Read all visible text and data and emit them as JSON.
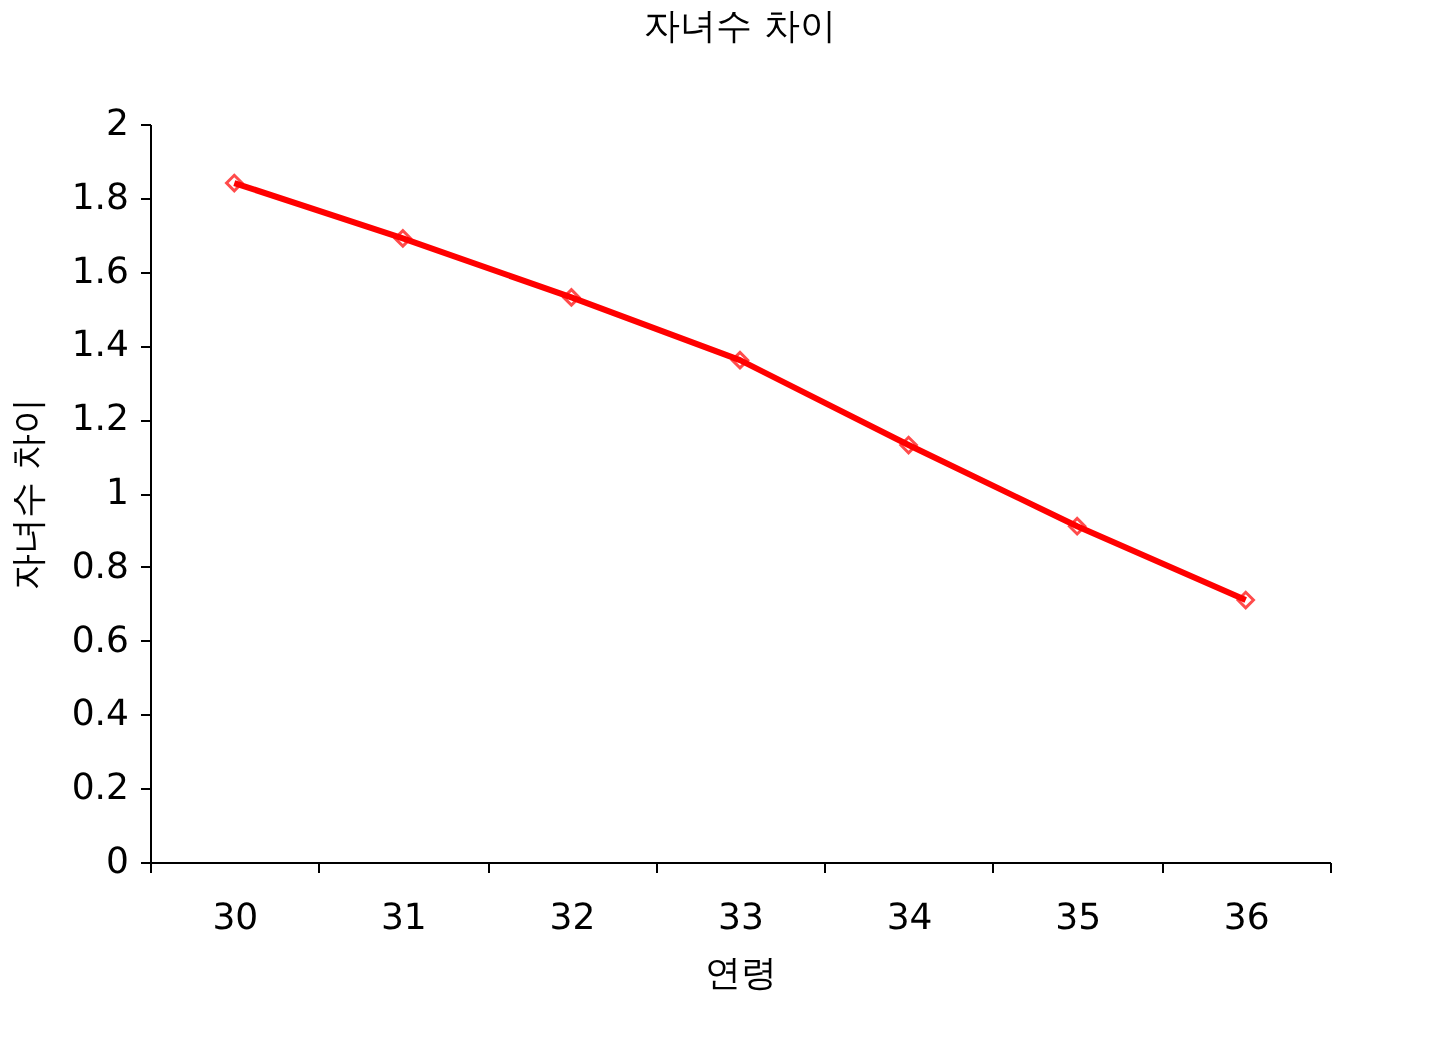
{
  "chart_data": {
    "type": "line",
    "title": "자녀수 차이",
    "xlabel": "연령",
    "ylabel": "자녀수 차이",
    "categories": [
      "30",
      "31",
      "32",
      "33",
      "34",
      "35",
      "36"
    ],
    "series": [
      {
        "color": "#ff0000",
        "values": [
          1.84,
          1.69,
          1.53,
          1.36,
          1.13,
          0.91,
          0.71
        ]
      }
    ],
    "ylim": [
      0,
      2
    ],
    "yticks": [
      0,
      0.2,
      0.4,
      0.6,
      0.8,
      1,
      1.2,
      1.4,
      1.6,
      1.8,
      2
    ],
    "grid": false,
    "marker": "diamond",
    "line_style": "solid"
  }
}
